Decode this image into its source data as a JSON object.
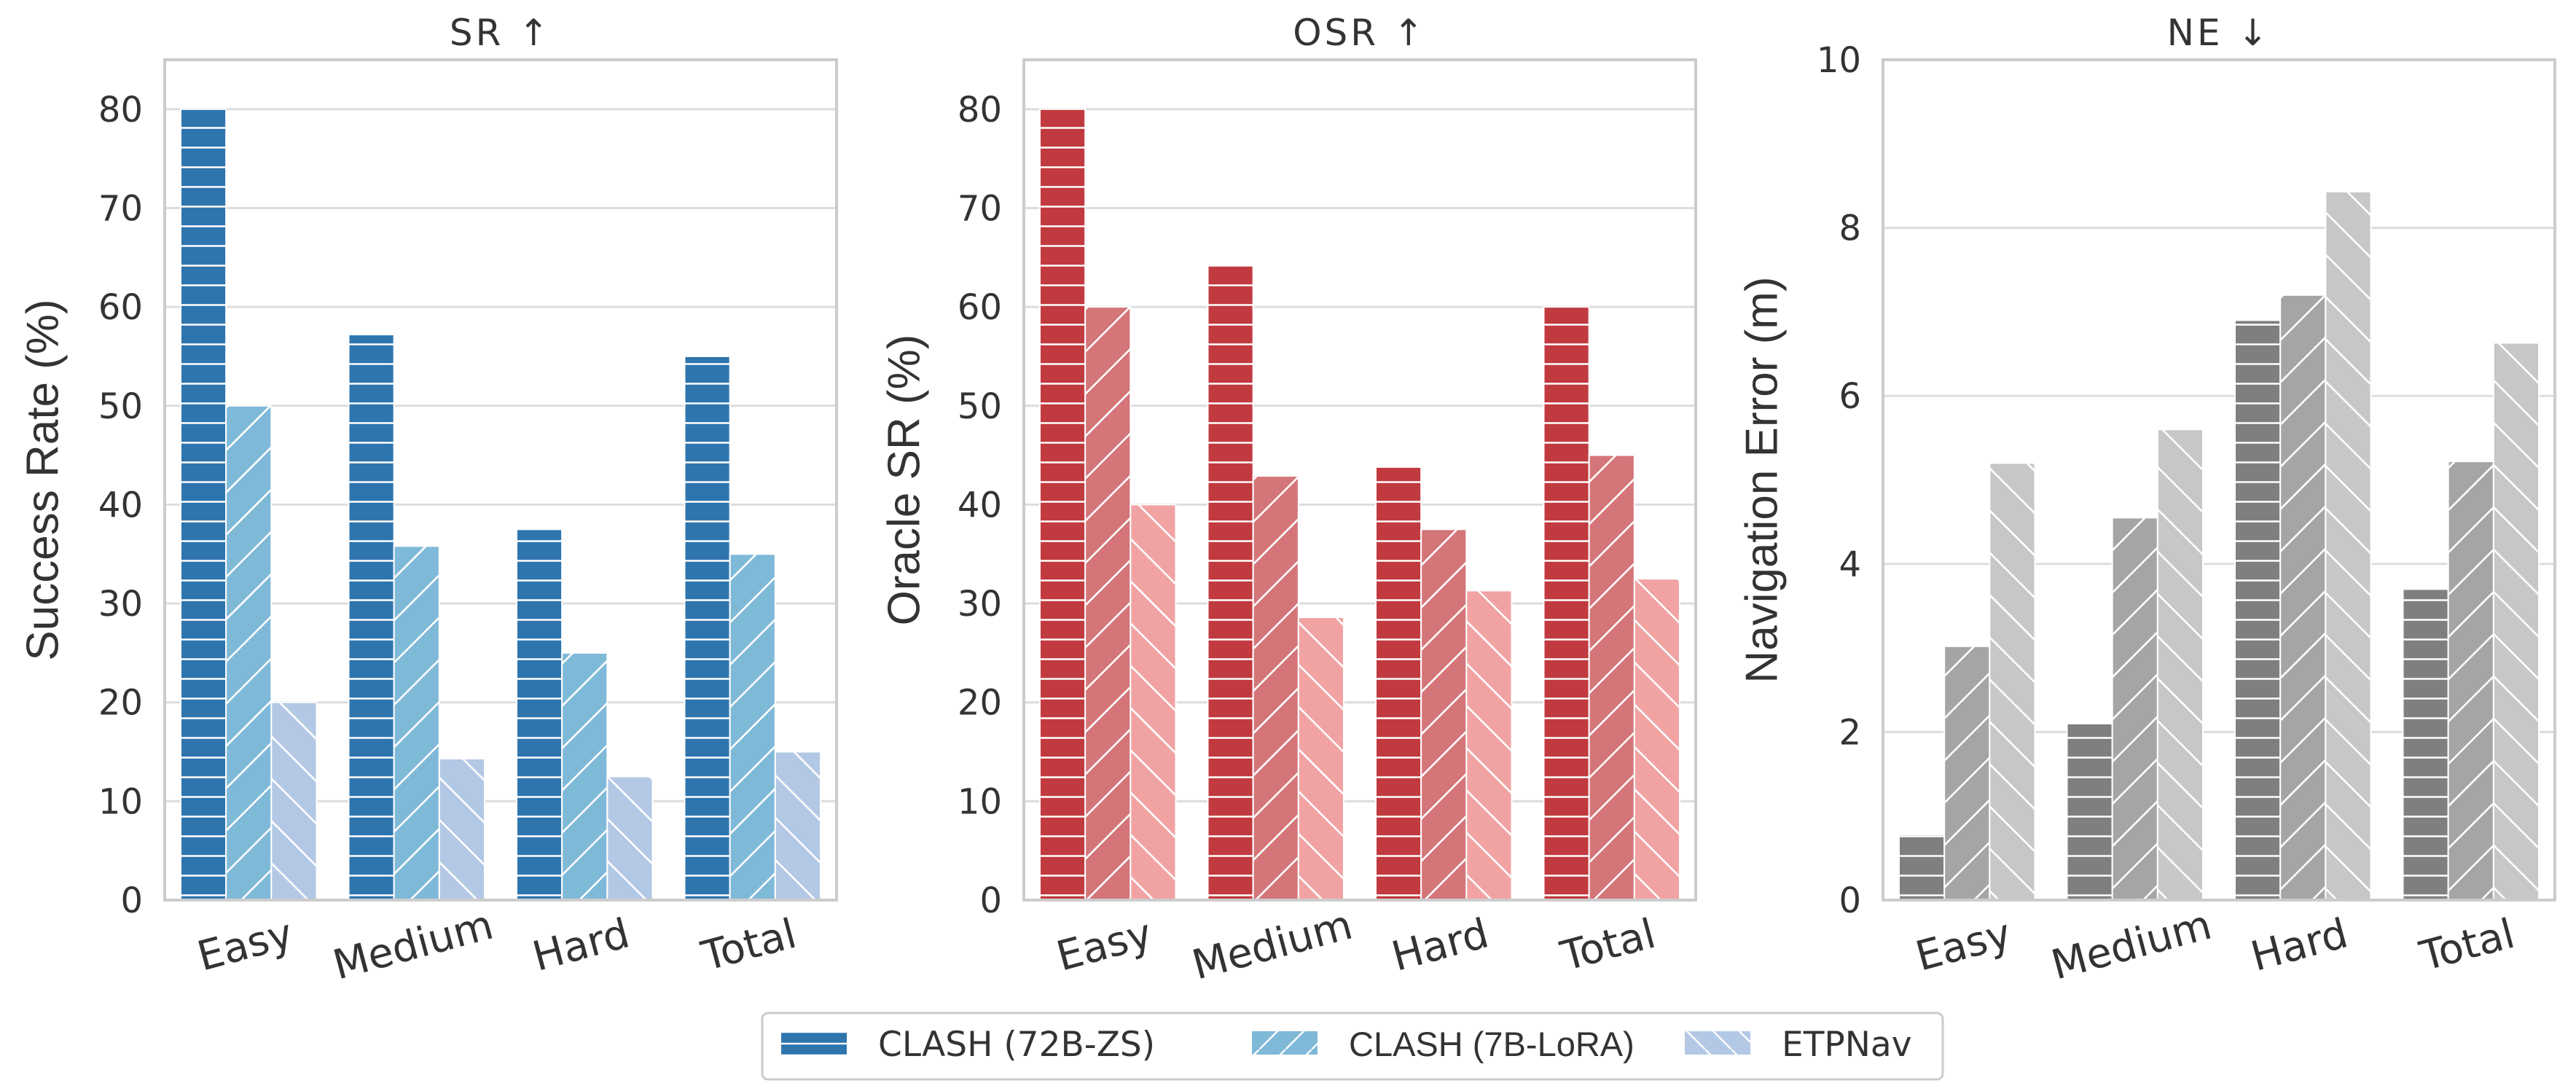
{
  "chart_data": [
    {
      "type": "bar",
      "title": "SR ↑",
      "ylabel": "Success Rate (%)",
      "categories": [
        "Easy",
        "Medium",
        "Hard",
        "Total"
      ],
      "ylim": [
        0,
        85
      ],
      "yticks": [
        0,
        10,
        20,
        30,
        40,
        50,
        60,
        70,
        80
      ],
      "ytick_labels": [
        "0",
        "10",
        "20",
        "30",
        "40",
        "50",
        "60",
        "70",
        "80"
      ],
      "grid": true,
      "colors": [
        "#2e75ae",
        "#7fb9d8",
        "#b3c8e5"
      ],
      "series": [
        {
          "name": "CLASH (72B-ZS)",
          "values": [
            80,
            57.2,
            37.5,
            55
          ]
        },
        {
          "name": "CLASH (7B-LoRA)",
          "values": [
            50,
            35.8,
            25,
            35
          ]
        },
        {
          "name": "ETPNav",
          "values": [
            20,
            14.3,
            12.5,
            15
          ]
        }
      ]
    },
    {
      "type": "bar",
      "title": "OSR ↑",
      "ylabel": "Oracle SR (%)",
      "categories": [
        "Easy",
        "Medium",
        "Hard",
        "Total"
      ],
      "ylim": [
        0,
        85
      ],
      "yticks": [
        0,
        10,
        20,
        30,
        40,
        50,
        60,
        70,
        80
      ],
      "ytick_labels": [
        "0",
        "10",
        "20",
        "30",
        "40",
        "50",
        "60",
        "70",
        "80"
      ],
      "grid": true,
      "colors": [
        "#c13a3f",
        "#d4757a",
        "#f1a3a3"
      ],
      "series": [
        {
          "name": "CLASH (72B-ZS)",
          "values": [
            80,
            64.3,
            43.8,
            60
          ]
        },
        {
          "name": "CLASH (7B-LoRA)",
          "values": [
            60,
            42.9,
            37.5,
            45
          ]
        },
        {
          "name": "ETPNav",
          "values": [
            40,
            28.6,
            31.3,
            32.5
          ]
        }
      ]
    },
    {
      "type": "bar",
      "title": "NE ↓",
      "ylabel": "Navigation Error (m)",
      "categories": [
        "Easy",
        "Medium",
        "Hard",
        "Total"
      ],
      "ylim": [
        0,
        10
      ],
      "yticks": [
        0,
        2,
        4,
        6,
        8,
        10
      ],
      "ytick_labels": [
        "0",
        "2",
        "4",
        "6",
        "8",
        "10"
      ],
      "grid": true,
      "colors": [
        "#7f7f7f",
        "#a5a5a5",
        "#c7c7c7"
      ],
      "series": [
        {
          "name": "CLASH (72B-ZS)",
          "values": [
            0.78,
            2.1,
            6.9,
            3.7
          ]
        },
        {
          "name": "CLASH (7B-LoRA)",
          "values": [
            3.02,
            4.55,
            7.2,
            5.22
          ]
        },
        {
          "name": "ETPNav",
          "values": [
            5.2,
            5.6,
            8.43,
            6.63
          ]
        }
      ]
    }
  ],
  "legend": {
    "placement": "bottom-center",
    "entries": [
      {
        "label": "CLASH (72B-ZS)",
        "color": "#2e75ae",
        "hatch": "horizontal"
      },
      {
        "label": "CLASH (7B-LoRA)",
        "color": "#7fb9d8",
        "hatch": "diagonal-up"
      },
      {
        "label": "ETPNav",
        "color": "#b3c8e5",
        "hatch": "diagonal-down"
      }
    ]
  },
  "colors": {
    "grid": "#dddddd",
    "text": "#333333",
    "hatch": "#ffffff"
  }
}
